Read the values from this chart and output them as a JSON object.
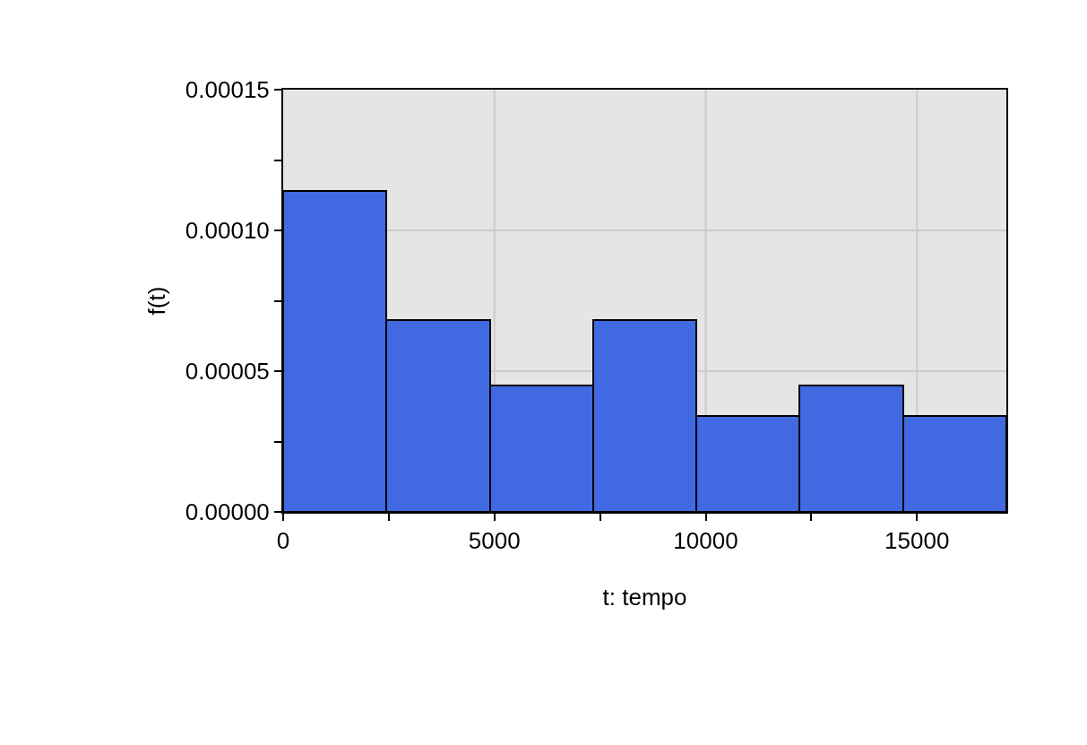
{
  "chart_data": {
    "type": "histogram",
    "xlabel": "t: tempo",
    "ylabel": "f(t)",
    "bins": [
      0,
      2445,
      4890,
      7335,
      9780,
      12225,
      14670,
      17115
    ],
    "values": [
      0.000114,
      6.8e-05,
      4.5e-05,
      6.8e-05,
      3.4e-05,
      4.5e-05,
      3.4e-05
    ],
    "color": "#4169e1",
    "xlim": [
      0,
      17115
    ],
    "ylim": [
      0,
      0.00015
    ],
    "xticks": [
      0,
      {
        "value": 2500,
        "label": null
      },
      5000,
      {
        "value": 7500,
        "label": null
      },
      10000,
      {
        "value": 12500,
        "label": null
      },
      15000
    ],
    "yticks": [
      {
        "value": 0,
        "label": "0.00000"
      },
      {
        "value": 2.5e-05,
        "label": null
      },
      {
        "value": 5e-05,
        "label": "0.00005"
      },
      {
        "value": 7.5e-05,
        "label": null
      },
      {
        "value": 0.0001,
        "label": "0.00010"
      },
      {
        "value": 0.000125,
        "label": null
      },
      {
        "value": 0.00015,
        "label": "0.00015"
      }
    ],
    "grid": true
  }
}
